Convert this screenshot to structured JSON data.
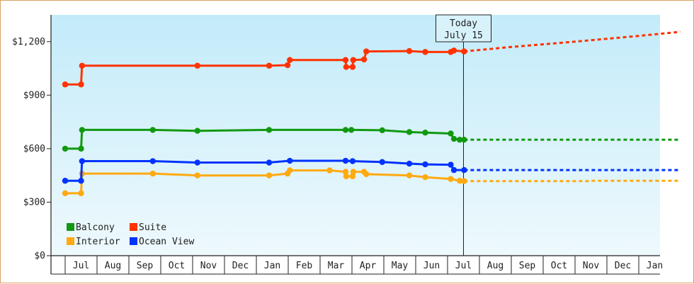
{
  "chart_data": {
    "type": "line",
    "title": "",
    "xlabel": "",
    "ylabel": "",
    "ylim": [
      0,
      1350
    ],
    "y_ticks": [
      {
        "value": 0,
        "label": "$0"
      },
      {
        "value": 300,
        "label": "$300"
      },
      {
        "value": 600,
        "label": "$600"
      },
      {
        "value": 900,
        "label": "$900"
      },
      {
        "value": 1200,
        "label": "$1,200"
      }
    ],
    "x_range": [
      0,
      19.3
    ],
    "x_ticks": [
      {
        "pos": 0.5,
        "label": "Jul"
      },
      {
        "pos": 1.5,
        "label": "Aug"
      },
      {
        "pos": 2.5,
        "label": "Sep"
      },
      {
        "pos": 3.5,
        "label": "Oct"
      },
      {
        "pos": 4.5,
        "label": "Nov"
      },
      {
        "pos": 5.5,
        "label": "Dec"
      },
      {
        "pos": 6.5,
        "label": "Jan"
      },
      {
        "pos": 7.5,
        "label": "Feb"
      },
      {
        "pos": 8.5,
        "label": "Mar"
      },
      {
        "pos": 9.5,
        "label": "Apr"
      },
      {
        "pos": 10.5,
        "label": "May"
      },
      {
        "pos": 11.5,
        "label": "Jun"
      },
      {
        "pos": 12.5,
        "label": "Jul"
      },
      {
        "pos": 13.5,
        "label": "Aug"
      },
      {
        "pos": 14.5,
        "label": "Sep"
      },
      {
        "pos": 15.5,
        "label": "Oct"
      },
      {
        "pos": 16.5,
        "label": "Nov"
      },
      {
        "pos": 17.5,
        "label": "Dec"
      },
      {
        "pos": 18.5,
        "label": "Jan"
      }
    ],
    "today": {
      "x": 12.5,
      "line1": "Today",
      "line2": "July 15"
    },
    "grid": false,
    "legend_position": "bottom-left",
    "series": [
      {
        "name": "Balcony",
        "color": "#119911",
        "points": [
          [
            0,
            600
          ],
          [
            0.5,
            600
          ],
          [
            0.53,
            705
          ],
          [
            2.75,
            705
          ],
          [
            4.15,
            700
          ],
          [
            6.4,
            705
          ],
          [
            8.8,
            705
          ],
          [
            8.98,
            705
          ],
          [
            9.95,
            703
          ],
          [
            10.8,
            693
          ],
          [
            11.3,
            690
          ],
          [
            12.1,
            685
          ],
          [
            12.2,
            655
          ],
          [
            12.38,
            650
          ],
          [
            12.52,
            650
          ]
        ],
        "forecast": [
          [
            12.52,
            650
          ],
          [
            19.3,
            650
          ]
        ]
      },
      {
        "name": "Suite",
        "color": "#ff3300",
        "points": [
          [
            0,
            960
          ],
          [
            0.5,
            960
          ],
          [
            0.53,
            1065
          ],
          [
            4.15,
            1065
          ],
          [
            6.4,
            1065
          ],
          [
            6.98,
            1068
          ],
          [
            7.05,
            1097
          ],
          [
            8.8,
            1097
          ],
          [
            8.82,
            1058
          ],
          [
            9.02,
            1058
          ],
          [
            9.04,
            1097
          ],
          [
            9.38,
            1100
          ],
          [
            9.45,
            1145
          ],
          [
            10.8,
            1147
          ],
          [
            11.3,
            1142
          ],
          [
            12.1,
            1142
          ],
          [
            12.2,
            1150
          ],
          [
            12.52,
            1145
          ]
        ],
        "forecast": [
          [
            12.52,
            1145
          ],
          [
            14,
            1170
          ],
          [
            16,
            1200
          ],
          [
            18,
            1232
          ],
          [
            19.3,
            1255
          ]
        ]
      },
      {
        "name": "Interior",
        "color": "#ffaa11",
        "points": [
          [
            0,
            350
          ],
          [
            0.5,
            350
          ],
          [
            0.53,
            460
          ],
          [
            2.75,
            460
          ],
          [
            4.15,
            450
          ],
          [
            6.4,
            450
          ],
          [
            6.98,
            460
          ],
          [
            7.05,
            478
          ],
          [
            8.3,
            478
          ],
          [
            8.8,
            470
          ],
          [
            8.82,
            445
          ],
          [
            9.02,
            445
          ],
          [
            9.04,
            470
          ],
          [
            9.38,
            470
          ],
          [
            9.45,
            457
          ],
          [
            10.8,
            450
          ],
          [
            11.3,
            440
          ],
          [
            12.1,
            430
          ],
          [
            12.38,
            420
          ],
          [
            12.52,
            418
          ]
        ],
        "forecast": [
          [
            12.52,
            418
          ],
          [
            16.4,
            418
          ],
          [
            16.5,
            420
          ],
          [
            19.3,
            420
          ]
        ]
      },
      {
        "name": "Ocean View",
        "color": "#0033ff",
        "points": [
          [
            0,
            420
          ],
          [
            0.5,
            420
          ],
          [
            0.53,
            530
          ],
          [
            2.75,
            530
          ],
          [
            4.15,
            522
          ],
          [
            6.4,
            522
          ],
          [
            7.05,
            532
          ],
          [
            8.8,
            532
          ],
          [
            9.02,
            530
          ],
          [
            9.95,
            525
          ],
          [
            10.8,
            516
          ],
          [
            11.3,
            512
          ],
          [
            12.1,
            510
          ],
          [
            12.2,
            480
          ],
          [
            12.52,
            480
          ]
        ],
        "forecast": [
          [
            12.52,
            480
          ],
          [
            19.3,
            480
          ]
        ]
      }
    ]
  }
}
